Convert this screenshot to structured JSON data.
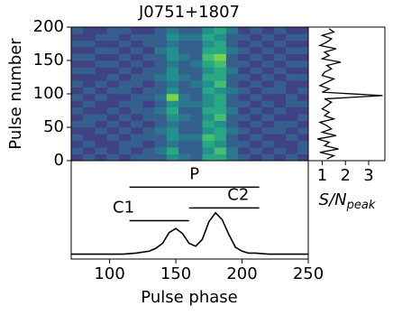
{
  "chart_data": [
    {
      "type": "heatmap",
      "title": "J0751+1807",
      "ylabel": "Pulse number",
      "colormap": "viridis",
      "xlim": [
        71,
        250
      ],
      "ylim": [
        0,
        200
      ],
      "yticks": [
        0,
        50,
        100,
        150,
        200
      ],
      "zlim": [
        0,
        1
      ],
      "x_bins": [
        71,
        80,
        89,
        98,
        107,
        116,
        125,
        134,
        143,
        152,
        161,
        170,
        179,
        188,
        197,
        206,
        215,
        224,
        233,
        242,
        251
      ],
      "y_bins": [
        0,
        10,
        20,
        30,
        40,
        50,
        60,
        70,
        80,
        90,
        100,
        110,
        120,
        130,
        140,
        150,
        160,
        170,
        180,
        190,
        200
      ],
      "z": [
        [
          0.2,
          0.3,
          0.2,
          0.3,
          0.2,
          0.3,
          0.3,
          0.3,
          0.5,
          0.4,
          0.3,
          0.6,
          0.6,
          0.4,
          0.3,
          0.2,
          0.3,
          0.2,
          0.3,
          0.2
        ],
        [
          0.3,
          0.2,
          0.3,
          0.2,
          0.3,
          0.2,
          0.3,
          0.4,
          0.6,
          0.3,
          0.3,
          0.5,
          0.7,
          0.4,
          0.2,
          0.3,
          0.2,
          0.3,
          0.2,
          0.3
        ],
        [
          0.2,
          0.3,
          0.2,
          0.2,
          0.3,
          0.3,
          0.2,
          0.3,
          0.4,
          0.3,
          0.3,
          0.6,
          0.5,
          0.3,
          0.3,
          0.2,
          0.3,
          0.2,
          0.2,
          0.3
        ],
        [
          0.3,
          0.2,
          0.2,
          0.3,
          0.2,
          0.3,
          0.3,
          0.3,
          0.5,
          0.4,
          0.4,
          0.7,
          0.6,
          0.3,
          0.2,
          0.3,
          0.2,
          0.2,
          0.3,
          0.2
        ],
        [
          0.2,
          0.2,
          0.3,
          0.2,
          0.3,
          0.2,
          0.3,
          0.4,
          0.5,
          0.3,
          0.3,
          0.5,
          0.6,
          0.4,
          0.3,
          0.2,
          0.3,
          0.3,
          0.2,
          0.3
        ],
        [
          0.3,
          0.3,
          0.2,
          0.3,
          0.2,
          0.3,
          0.2,
          0.3,
          0.4,
          0.3,
          0.3,
          0.6,
          0.5,
          0.3,
          0.2,
          0.3,
          0.2,
          0.3,
          0.3,
          0.2
        ],
        [
          0.2,
          0.3,
          0.3,
          0.2,
          0.3,
          0.2,
          0.3,
          0.3,
          0.5,
          0.4,
          0.3,
          0.5,
          0.7,
          0.3,
          0.3,
          0.2,
          0.3,
          0.2,
          0.2,
          0.3
        ],
        [
          0.3,
          0.2,
          0.2,
          0.3,
          0.2,
          0.3,
          0.3,
          0.4,
          0.6,
          0.3,
          0.3,
          0.6,
          0.6,
          0.4,
          0.2,
          0.3,
          0.2,
          0.3,
          0.2,
          0.2
        ],
        [
          0.2,
          0.3,
          0.2,
          0.2,
          0.3,
          0.3,
          0.2,
          0.3,
          0.5,
          0.4,
          0.4,
          0.5,
          0.6,
          0.3,
          0.3,
          0.2,
          0.3,
          0.2,
          0.3,
          0.3
        ],
        [
          0.3,
          0.2,
          0.3,
          0.2,
          0.2,
          0.3,
          0.3,
          0.4,
          0.8,
          0.4,
          0.3,
          0.5,
          0.6,
          0.3,
          0.2,
          0.3,
          0.2,
          0.2,
          0.3,
          0.2
        ],
        [
          0.2,
          0.3,
          0.2,
          0.3,
          0.3,
          0.2,
          0.3,
          0.3,
          0.5,
          0.3,
          0.3,
          0.6,
          0.5,
          0.4,
          0.3,
          0.2,
          0.3,
          0.3,
          0.2,
          0.3
        ],
        [
          0.3,
          0.2,
          0.3,
          0.2,
          0.3,
          0.3,
          0.2,
          0.3,
          0.4,
          0.3,
          0.4,
          0.5,
          0.7,
          0.3,
          0.2,
          0.3,
          0.2,
          0.3,
          0.2,
          0.2
        ],
        [
          0.2,
          0.2,
          0.2,
          0.3,
          0.2,
          0.3,
          0.3,
          0.4,
          0.5,
          0.4,
          0.3,
          0.6,
          0.6,
          0.3,
          0.3,
          0.2,
          0.3,
          0.2,
          0.3,
          0.3
        ],
        [
          0.3,
          0.3,
          0.2,
          0.2,
          0.3,
          0.2,
          0.3,
          0.3,
          0.5,
          0.3,
          0.3,
          0.5,
          0.6,
          0.4,
          0.2,
          0.3,
          0.2,
          0.3,
          0.2,
          0.2
        ],
        [
          0.2,
          0.2,
          0.3,
          0.3,
          0.2,
          0.3,
          0.2,
          0.3,
          0.4,
          0.3,
          0.4,
          0.6,
          0.7,
          0.3,
          0.3,
          0.2,
          0.3,
          0.2,
          0.3,
          0.3
        ],
        [
          0.3,
          0.3,
          0.2,
          0.2,
          0.3,
          0.2,
          0.3,
          0.3,
          0.5,
          0.4,
          0.3,
          0.7,
          0.8,
          0.3,
          0.2,
          0.3,
          0.2,
          0.3,
          0.2,
          0.2
        ],
        [
          0.2,
          0.2,
          0.3,
          0.3,
          0.2,
          0.3,
          0.2,
          0.4,
          0.5,
          0.3,
          0.3,
          0.6,
          0.6,
          0.4,
          0.3,
          0.2,
          0.3,
          0.2,
          0.3,
          0.3
        ],
        [
          0.3,
          0.3,
          0.2,
          0.2,
          0.3,
          0.2,
          0.3,
          0.3,
          0.4,
          0.3,
          0.3,
          0.5,
          0.6,
          0.3,
          0.2,
          0.3,
          0.2,
          0.3,
          0.2,
          0.2
        ],
        [
          0.2,
          0.2,
          0.3,
          0.3,
          0.2,
          0.3,
          0.3,
          0.3,
          0.5,
          0.4,
          0.4,
          0.6,
          0.5,
          0.3,
          0.3,
          0.2,
          0.3,
          0.2,
          0.3,
          0.3
        ],
        [
          0.3,
          0.2,
          0.2,
          0.3,
          0.3,
          0.2,
          0.2,
          0.3,
          0.4,
          0.3,
          0.3,
          0.5,
          0.6,
          0.4,
          0.2,
          0.3,
          0.2,
          0.3,
          0.2,
          0.2
        ]
      ]
    },
    {
      "type": "line",
      "orientation": "horizontal",
      "color": "#000000",
      "xlabel": {
        "text": "S/N",
        "subscript": "peak"
      },
      "xlim": [
        0.4,
        3.7
      ],
      "xticks": [
        1,
        2,
        3
      ],
      "ylim": [
        0,
        200
      ],
      "y": [
        2.5,
        7.5,
        12.5,
        17.5,
        22.5,
        27.5,
        32.5,
        37.5,
        42.5,
        47.5,
        52.5,
        57.5,
        62.5,
        67.5,
        72.5,
        77.5,
        82.5,
        87.5,
        92.5,
        97.5,
        102.5,
        107.5,
        112.5,
        117.5,
        122.5,
        127.5,
        132.5,
        137.5,
        142.5,
        147.5,
        152.5,
        157.5,
        162.5,
        167.5,
        172.5,
        177.5,
        182.5,
        187.5,
        192.5,
        197.5
      ],
      "values": [
        1.2,
        1.5,
        0.9,
        1.7,
        1.1,
        1.3,
        0.8,
        1.6,
        1.0,
        1.4,
        1.2,
        0.9,
        1.5,
        1.1,
        1.3,
        1.0,
        1.2,
        1.4,
        1.1,
        3.6,
        1.0,
        1.3,
        0.9,
        1.2,
        1.5,
        1.0,
        1.1,
        1.4,
        1.2,
        1.8,
        1.0,
        1.3,
        1.1,
        1.6,
        0.9,
        1.2,
        1.4,
        1.0,
        1.5,
        1.3
      ]
    },
    {
      "type": "line",
      "orientation": "vertical",
      "color": "#000000",
      "xlabel": "Pulse phase",
      "xlim": [
        71,
        250
      ],
      "xticks": [
        100,
        150,
        200,
        250
      ],
      "ylim": [
        0,
        1
      ],
      "x": [
        71,
        80,
        90,
        100,
        110,
        120,
        130,
        135,
        140,
        145,
        150,
        155,
        160,
        165,
        170,
        175,
        180,
        185,
        190,
        195,
        200,
        205,
        210,
        220,
        230,
        240,
        250
      ],
      "values": [
        0.05,
        0.05,
        0.05,
        0.05,
        0.05,
        0.06,
        0.08,
        0.11,
        0.16,
        0.27,
        0.31,
        0.26,
        0.16,
        0.13,
        0.2,
        0.38,
        0.47,
        0.4,
        0.25,
        0.12,
        0.08,
        0.06,
        0.06,
        0.05,
        0.05,
        0.05,
        0.05
      ],
      "annotations": [
        {
          "label": "P",
          "start": 115,
          "end": 213,
          "y": 0.73
        },
        {
          "label": "C1",
          "start": 115,
          "end": 160,
          "y": 0.39
        },
        {
          "label": "C2",
          "start": 160,
          "end": 213,
          "y": 0.52
        }
      ]
    }
  ]
}
